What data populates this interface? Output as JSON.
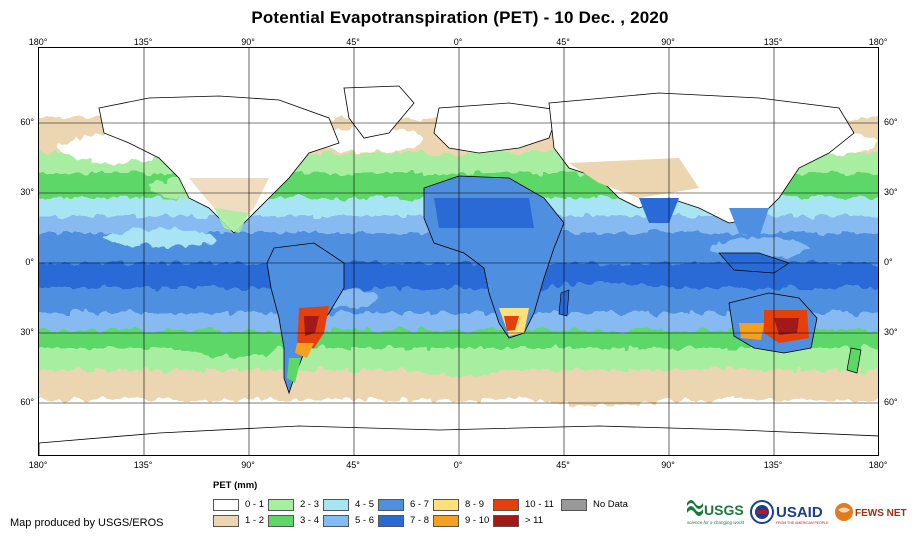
{
  "title": "Potential Evapotranspiration (PET) - 10 Dec. , 2020",
  "axes": {
    "lon_ticks": [
      "180°",
      "135°",
      "90°",
      "45°",
      "0°",
      "45°",
      "90°",
      "135°",
      "180°"
    ],
    "lat_ticks": [
      "60°",
      "30°",
      "0°",
      "30°",
      "60°"
    ]
  },
  "legend": {
    "title": "PET (mm)",
    "items": [
      {
        "label": "0 - 1",
        "color": "#ffffff"
      },
      {
        "label": "1 - 2",
        "color": "#ecd5b1"
      },
      {
        "label": "2 - 3",
        "color": "#a8eea0"
      },
      {
        "label": "3 - 4",
        "color": "#5cd768"
      },
      {
        "label": "4 - 5",
        "color": "#a8e4f4"
      },
      {
        "label": "5 - 6",
        "color": "#86baf0"
      },
      {
        "label": "6 - 7",
        "color": "#4f8fe0"
      },
      {
        "label": "7 - 8",
        "color": "#2a6ad6"
      },
      {
        "label": "8 - 9",
        "color": "#fde07a"
      },
      {
        "label": "9 - 10",
        "color": "#f5a020"
      },
      {
        "label": "10 - 11",
        "color": "#e4400c"
      },
      {
        "label": "> 11",
        "color": "#a01a1a"
      },
      {
        "label": "No Data",
        "color": "#999999"
      }
    ]
  },
  "credit": "Map produced by USGS/EROS",
  "logos": {
    "usgs": "USGS",
    "usgs_tagline": "science for a changing world",
    "usaid": "USAID",
    "usaid_tagline": "FROM THE AMERICAN PEOPLE",
    "fews": "FEWS NET"
  },
  "colors": {
    "grid": "#000000",
    "coast": "#000000"
  }
}
